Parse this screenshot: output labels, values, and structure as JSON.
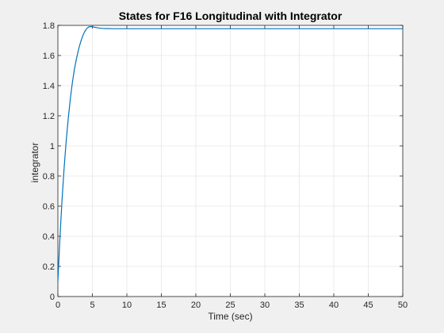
{
  "chart_data": {
    "type": "line",
    "title": "States for F16 Longitudinal with Integrator",
    "xlabel": "Time (sec)",
    "ylabel": "integrator",
    "xlim": [
      0,
      50
    ],
    "ylim": [
      0,
      1.8
    ],
    "xticks": [
      0,
      5,
      10,
      15,
      20,
      25,
      30,
      35,
      40,
      45,
      50
    ],
    "yticks": [
      0,
      0.2,
      0.4,
      0.6,
      0.8,
      1,
      1.2,
      1.4,
      1.6,
      1.8
    ],
    "grid": true,
    "legend": "none",
    "series": [
      {
        "color": "#0072bd",
        "x": [
          0,
          0.3,
          0.6,
          0.9,
          1.2,
          1.5,
          1.8,
          2.1,
          2.4,
          2.7,
          3.0,
          3.3,
          3.6,
          3.9,
          4.2,
          4.5,
          4.8,
          5.1,
          5.5,
          6.0,
          6.5,
          7.0,
          8.0,
          9.0,
          10.0,
          12.0,
          15.0,
          20.0,
          25.0,
          30.0,
          35.0,
          40.0,
          45.0,
          50.0
        ],
        "y": [
          0.1,
          0.39,
          0.64,
          0.85,
          1.03,
          1.18,
          1.31,
          1.42,
          1.51,
          1.58,
          1.64,
          1.69,
          1.73,
          1.76,
          1.78,
          1.79,
          1.792,
          1.79,
          1.786,
          1.782,
          1.78,
          1.779,
          1.778,
          1.778,
          1.778,
          1.778,
          1.778,
          1.778,
          1.778,
          1.778,
          1.778,
          1.778,
          1.778,
          1.778
        ]
      }
    ]
  }
}
